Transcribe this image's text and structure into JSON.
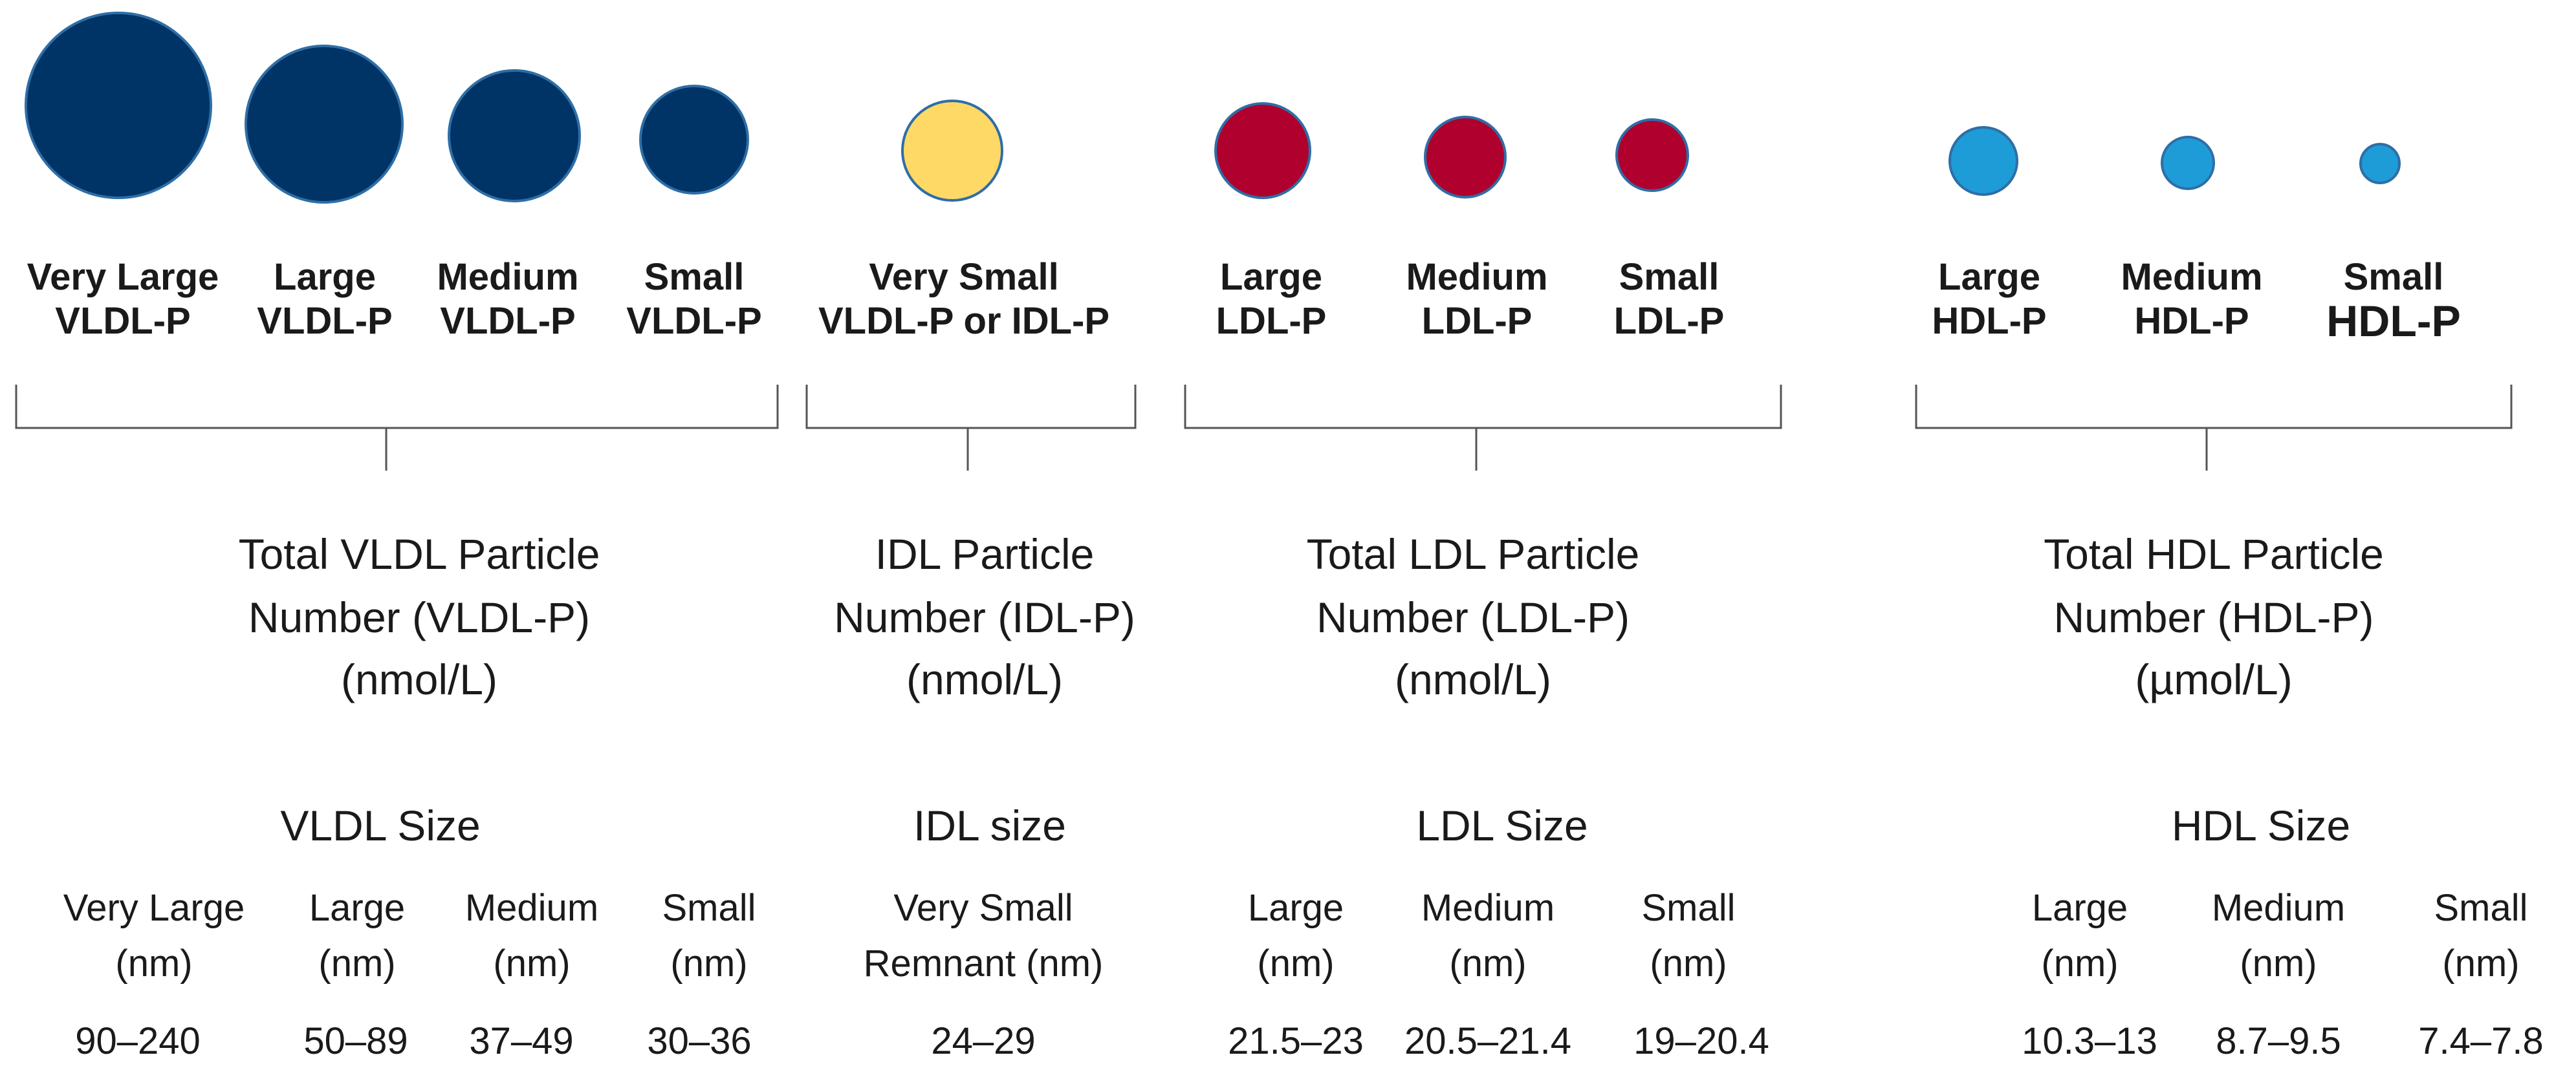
{
  "colors": {
    "vldl": "#003366",
    "idl": "#FFD966",
    "ldl": "#B0002E",
    "hdl": "#1E9CD7",
    "stroke": "#2E6EA6",
    "bracket": "#555555",
    "text": "#1a1a1a"
  },
  "particles": [
    {
      "label": [
        "Very Large",
        "VLDL-P"
      ],
      "color_key": "vldl"
    },
    {
      "label": [
        "Large",
        "VLDL-P"
      ],
      "color_key": "vldl"
    },
    {
      "label": [
        "Medium",
        "VLDL-P"
      ],
      "color_key": "vldl"
    },
    {
      "label": [
        "Small",
        "VLDL-P"
      ],
      "color_key": "vldl"
    },
    {
      "label": [
        "Very Small",
        "VLDL-P or IDL-P"
      ],
      "color_key": "idl"
    },
    {
      "label": [
        "Large",
        "LDL-P"
      ],
      "color_key": "ldl"
    },
    {
      "label": [
        "Medium",
        "LDL-P"
      ],
      "color_key": "ldl"
    },
    {
      "label": [
        "Small",
        "LDL-P"
      ],
      "color_key": "ldl"
    },
    {
      "label": [
        "Large",
        "HDL-P"
      ],
      "color_key": "hdl"
    },
    {
      "label": [
        "Medium",
        "HDL-P"
      ],
      "color_key": "hdl"
    },
    {
      "label": [
        "Small",
        "HDL-P"
      ],
      "color_key": "hdl"
    }
  ],
  "groups": [
    {
      "total_label": [
        "Total VLDL Particle",
        "Number (VLDL-P)",
        "(nmol/L)"
      ],
      "size_title": "VLDL Size"
    },
    {
      "total_label": [
        "IDL Particle",
        "Number (IDL-P)",
        "(nmol/L)"
      ],
      "size_title": "IDL size"
    },
    {
      "total_label": [
        "Total LDL Particle",
        "Number (LDL-P)",
        "(nmol/L)"
      ],
      "size_title": "LDL Size"
    },
    {
      "total_label": [
        "Total HDL Particle",
        "Number (HDL-P)",
        "(µmol/L)"
      ],
      "size_title": "HDL Size"
    }
  ],
  "sizes": [
    {
      "label": [
        "Very Large",
        "(nm)"
      ],
      "range": "90–240"
    },
    {
      "label": [
        "Large",
        "(nm)"
      ],
      "range": "50–89"
    },
    {
      "label": [
        "Medium",
        "(nm)"
      ],
      "range": "37–49"
    },
    {
      "label": [
        "Small",
        "(nm)"
      ],
      "range": "30–36"
    },
    {
      "label": [
        "Very Small",
        "Remnant  (nm)"
      ],
      "range": "24–29"
    },
    {
      "label": [
        "Large",
        "(nm)"
      ],
      "range": "21.5–23"
    },
    {
      "label": [
        "Medium",
        "(nm)"
      ],
      "range": "20.5–21.4"
    },
    {
      "label": [
        "Small",
        "(nm)"
      ],
      "range": "19–20.4"
    },
    {
      "label": [
        "Large",
        "(nm)"
      ],
      "range": "10.3–13"
    },
    {
      "label": [
        "Medium",
        "(nm)"
      ],
      "range": "8.7–9.5"
    },
    {
      "label": [
        "Small",
        "(nm)"
      ],
      "range": "7.4–7.8"
    }
  ]
}
